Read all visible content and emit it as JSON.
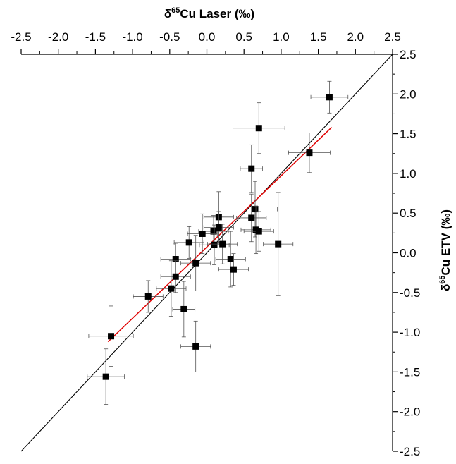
{
  "chart_data": {
    "type": "scatter",
    "xlabel": {
      "pre": "δ",
      "sup": "65",
      "post": "Cu Laser (‰)"
    },
    "ylabel": {
      "pre": "δ",
      "sup": "65",
      "post": "Cu ETV (‰)"
    },
    "xlim": [
      -2.5,
      2.5
    ],
    "ylim": [
      -2.5,
      2.5
    ],
    "x_ticks": [
      -2.5,
      -2.0,
      -1.5,
      -1.0,
      -0.5,
      0.0,
      0.5,
      1.0,
      1.5,
      2.0,
      2.5
    ],
    "y_ticks": [
      -2.5,
      -2.0,
      -1.5,
      -1.0,
      -0.5,
      0.0,
      0.5,
      1.0,
      1.5,
      2.0,
      2.5
    ],
    "x_tick_labels": [
      "-2.5",
      "-2.0",
      "-1.5",
      "-1.0",
      "-0.5",
      "0.0",
      "0.5",
      "1.0",
      "1.5",
      "2.0",
      "2.5"
    ],
    "y_tick_labels": [
      "-2.5",
      "-2.0",
      "-1.5",
      "-1.0",
      "-0.5",
      "0.0",
      "0.5",
      "1.0",
      "1.5",
      "2.0",
      "2.5"
    ],
    "x_axis_position": "top",
    "y_axis_position": "right",
    "grid": false,
    "points": [
      {
        "x": 1.65,
        "y": 1.96,
        "xerr": 0.25,
        "yerr": 0.2
      },
      {
        "x": 0.7,
        "y": 1.57,
        "xerr": 0.35,
        "yerr": 0.32
      },
      {
        "x": 1.38,
        "y": 1.26,
        "xerr": 0.28,
        "yerr": 0.25
      },
      {
        "x": 0.6,
        "y": 1.06,
        "xerr": 0.15,
        "yerr": 0.3
      },
      {
        "x": 0.65,
        "y": 0.55,
        "xerr": 0.3,
        "yerr": 0.35
      },
      {
        "x": 0.6,
        "y": 0.44,
        "xerr": 0.2,
        "yerr": 0.3
      },
      {
        "x": 0.66,
        "y": 0.29,
        "xerr": 0.2,
        "yerr": 0.3
      },
      {
        "x": 0.7,
        "y": 0.27,
        "xerr": 0.2,
        "yerr": 0.25
      },
      {
        "x": 0.96,
        "y": 0.11,
        "xerr": 0.2,
        "yerr": 0.65
      },
      {
        "x": 0.16,
        "y": 0.45,
        "xerr": 0.2,
        "yerr": 0.32
      },
      {
        "x": 0.16,
        "y": 0.32,
        "xerr": 0.2,
        "yerr": 0.2
      },
      {
        "x": 0.09,
        "y": 0.27,
        "xerr": 0.2,
        "yerr": 0.2
      },
      {
        "x": -0.06,
        "y": 0.24,
        "xerr": 0.2,
        "yerr": 0.25
      },
      {
        "x": -0.24,
        "y": 0.13,
        "xerr": 0.2,
        "yerr": 0.2
      },
      {
        "x": 0.1,
        "y": 0.1,
        "xerr": 0.2,
        "yerr": 0.25
      },
      {
        "x": 0.21,
        "y": 0.11,
        "xerr": 0.2,
        "yerr": 0.25
      },
      {
        "x": 0.32,
        "y": -0.08,
        "xerr": 0.2,
        "yerr": 0.35
      },
      {
        "x": 0.36,
        "y": -0.21,
        "xerr": 0.2,
        "yerr": 0.2
      },
      {
        "x": -0.15,
        "y": -0.13,
        "xerr": 0.2,
        "yerr": 0.35
      },
      {
        "x": -0.42,
        "y": -0.08,
        "xerr": 0.2,
        "yerr": 0.2
      },
      {
        "x": -0.42,
        "y": -0.3,
        "xerr": 0.2,
        "yerr": 0.2
      },
      {
        "x": -0.48,
        "y": -0.45,
        "xerr": 0.2,
        "yerr": 0.35
      },
      {
        "x": -0.31,
        "y": -0.71,
        "xerr": 0.15,
        "yerr": 0.35
      },
      {
        "x": -0.79,
        "y": -0.55,
        "xerr": 0.2,
        "yerr": 0.2
      },
      {
        "x": -0.15,
        "y": -1.18,
        "xerr": 0.2,
        "yerr": 0.32
      },
      {
        "x": -1.29,
        "y": -1.05,
        "xerr": 0.3,
        "yerr": 0.38
      },
      {
        "x": -1.36,
        "y": -1.56,
        "xerr": 0.25,
        "yerr": 0.35
      }
    ],
    "lines": [
      {
        "role": "identity",
        "color": "#000000",
        "x": [
          -2.5,
          2.5
        ],
        "y": [
          -2.5,
          2.5
        ]
      },
      {
        "role": "regression",
        "color": "#e00000",
        "x": [
          -1.33,
          1.68
        ],
        "y": [
          -1.12,
          1.58
        ]
      }
    ]
  }
}
